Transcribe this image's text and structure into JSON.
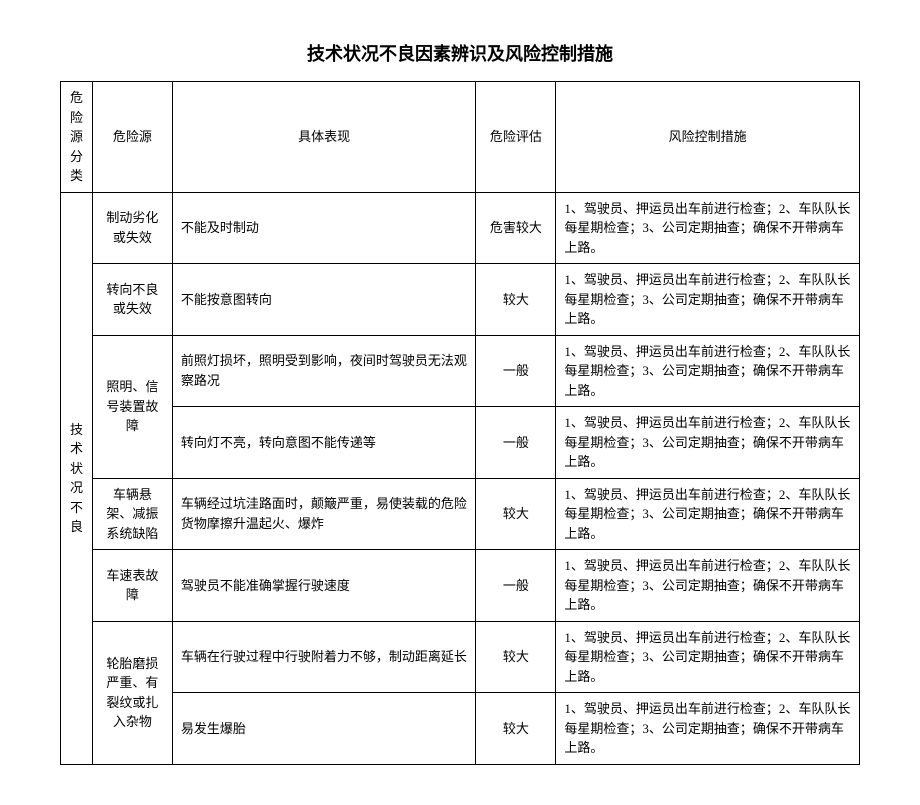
{
  "title": "技术状况不良因素辨识及风险控制措施",
  "headers": {
    "category": "危险源分类",
    "source": "危险源",
    "description": "具体表现",
    "evaluation": "危险评估",
    "control": "风险控制措施"
  },
  "category_label": "技术状况不良",
  "rows": [
    {
      "source": "制动劣化或失效",
      "source_rowspan": 1,
      "desc": "不能及时制动",
      "eval": "危害较大",
      "ctrl": "1、驾驶员、押运员出车前进行检查；2、车队队长每星期检查；3、公司定期抽查；确保不开带病车上路。"
    },
    {
      "source": "转向不良或失效",
      "source_rowspan": 1,
      "desc": "不能按意图转向",
      "eval": "较大",
      "ctrl": "1、驾驶员、押运员出车前进行检查；2、车队队长每星期检查；3、公司定期抽查；确保不开带病车上路。"
    },
    {
      "source": "照明、信号装置故障",
      "source_rowspan": 2,
      "desc": "前照灯损坏，照明受到影响，夜间时驾驶员无法观察路况",
      "eval": "一般",
      "ctrl": "1、驾驶员、押运员出车前进行检查；2、车队队长每星期检查；3、公司定期抽查；确保不开带病车上路。"
    },
    {
      "source": "",
      "source_rowspan": 0,
      "desc": "转向灯不亮，转向意图不能传递等",
      "eval": "一般",
      "ctrl": "1、驾驶员、押运员出车前进行检查；2、车队队长每星期检查；3、公司定期抽查；确保不开带病车上路。"
    },
    {
      "source": "车辆悬架、减振系统缺陷",
      "source_rowspan": 1,
      "desc": "车辆经过坑洼路面时，颠簸严重，易使装载的危险货物摩擦升温起火、爆炸",
      "eval": "较大",
      "ctrl": "1、驾驶员、押运员出车前进行检查；2、车队队长每星期检查；3、公司定期抽查；确保不开带病车上路。"
    },
    {
      "source": "车速表故障",
      "source_rowspan": 1,
      "desc": "驾驶员不能准确掌握行驶速度",
      "eval": "一般",
      "ctrl": "1、驾驶员、押运员出车前进行检查；2、车队队长每星期检查；3、公司定期抽查；确保不开带病车上路。"
    },
    {
      "source": "轮胎磨损严重、有裂纹或扎入杂物",
      "source_rowspan": 2,
      "desc": "车辆在行驶过程中行驶附着力不够，制动距离延长",
      "eval": "较大",
      "ctrl": "1、驾驶员、押运员出车前进行检查；2、车队队长每星期检查；3、公司定期抽查；确保不开带病车上路。"
    },
    {
      "source": "",
      "source_rowspan": 0,
      "desc": "易发生爆胎",
      "eval": "较大",
      "ctrl": "1、驾驶员、押运员出车前进行检查；2、车队队长每星期检查；3、公司定期抽查；确保不开带病车上路。"
    }
  ]
}
